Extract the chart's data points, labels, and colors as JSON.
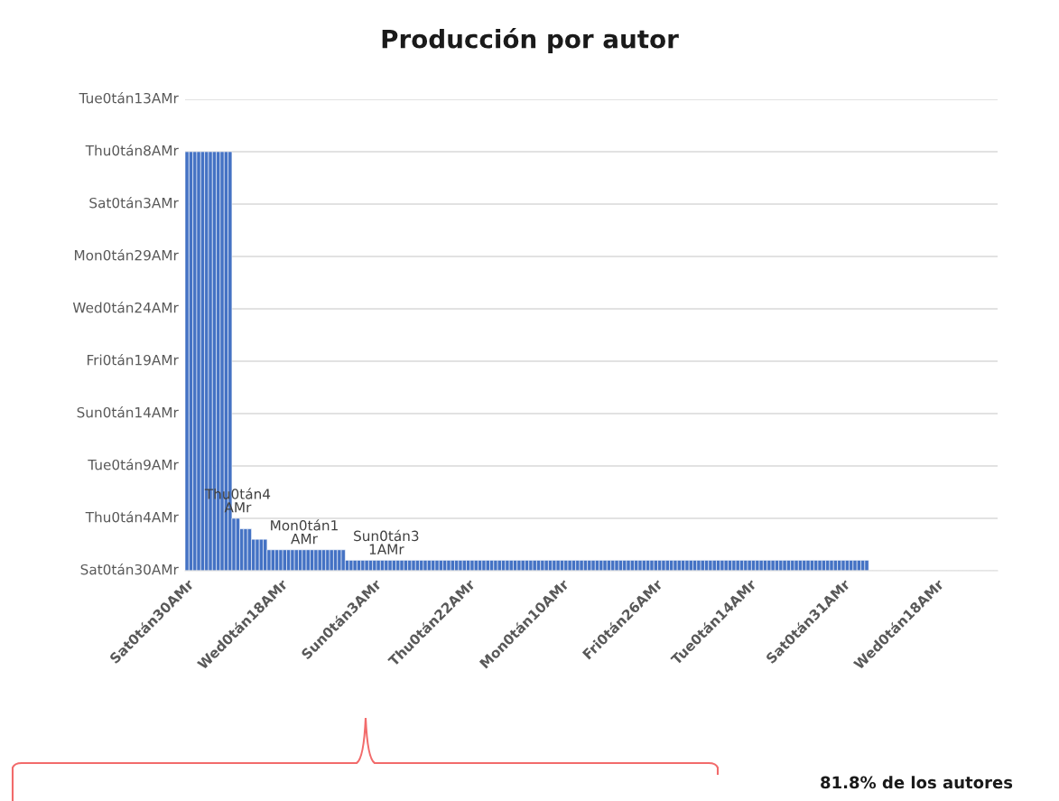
{
  "chart_data": {
    "type": "bar",
    "title": "Producción por autor",
    "ylim": [
      0,
      45
    ],
    "categories": [
      "Sat0tán30AMr",
      null,
      null,
      null,
      null,
      null,
      null,
      null,
      null,
      null,
      null,
      null,
      null,
      null,
      null,
      null,
      null,
      null,
      null,
      null,
      null,
      null,
      null,
      null,
      "Wed0tán18AMr",
      null,
      null,
      null,
      null,
      null,
      null,
      null,
      null,
      null,
      null,
      null,
      null,
      null,
      null,
      null,
      null,
      null,
      null,
      null,
      null,
      null,
      null,
      null,
      "Sun0tán3AMr",
      null,
      null,
      null,
      null,
      null,
      null,
      null,
      null,
      null,
      null,
      null,
      null,
      null,
      null,
      null,
      null,
      null,
      null,
      null,
      null,
      null,
      null,
      null,
      "Thu0tán22AMr",
      null,
      null,
      null,
      null,
      null,
      null,
      null,
      null,
      null,
      null,
      null,
      null,
      null,
      null,
      null,
      null,
      null,
      null,
      null,
      null,
      null,
      null,
      null,
      "Mon0tán10AMr",
      null,
      null,
      null,
      null,
      null,
      null,
      null,
      null,
      null,
      null,
      null,
      null,
      null,
      null,
      null,
      null,
      null,
      null,
      null,
      null,
      null,
      null,
      null,
      "Fri0tán26AMr",
      null,
      null,
      null,
      null,
      null,
      null,
      null,
      null,
      null,
      null,
      null,
      null,
      null,
      null,
      null,
      null,
      null,
      null,
      null,
      null,
      null,
      null,
      null,
      "Tue0tán14AMr",
      null,
      null,
      null,
      null,
      null,
      null,
      null,
      null,
      null,
      null,
      null,
      null,
      null,
      null,
      null,
      null,
      null,
      null,
      null,
      null,
      null,
      null,
      null,
      "Sat0tán31AMr",
      null,
      null,
      null,
      null,
      null,
      null,
      null,
      null,
      null,
      null,
      null,
      null,
      null,
      null,
      null,
      null,
      null,
      null,
      null,
      null,
      null,
      null,
      null,
      "Wed0tán18AMr",
      null,
      null,
      null,
      null,
      null,
      null,
      null,
      null,
      null,
      null,
      null,
      null,
      null,
      null,
      null
    ],
    "values": [
      40,
      40,
      40,
      40,
      40,
      40,
      40,
      40,
      40,
      40,
      40,
      40,
      5,
      5,
      4,
      4,
      4,
      3,
      3,
      3,
      3,
      2,
      2,
      2,
      2,
      2,
      2,
      2,
      2,
      2,
      2,
      2,
      2,
      2,
      2,
      2,
      2,
      2,
      2,
      2,
      2,
      1,
      1,
      1,
      1,
      1,
      1,
      1,
      1,
      1,
      1,
      1,
      1,
      1,
      1,
      1,
      1,
      1,
      1,
      1,
      1,
      1,
      1,
      1,
      1,
      1,
      1,
      1,
      1,
      1,
      1,
      1,
      1,
      1,
      1,
      1,
      1,
      1,
      1,
      1,
      1,
      1,
      1,
      1,
      1,
      1,
      1,
      1,
      1,
      1,
      1,
      1,
      1,
      1,
      1,
      1,
      1,
      1,
      1,
      1,
      1,
      1,
      1,
      1,
      1,
      1,
      1,
      1,
      1,
      1,
      1,
      1,
      1,
      1,
      1,
      1,
      1,
      1,
      1,
      1,
      1,
      1,
      1,
      1,
      1,
      1,
      1,
      1,
      1,
      1,
      1,
      1,
      1,
      1,
      1,
      1,
      1,
      1,
      1,
      1,
      1,
      1,
      1,
      1,
      1,
      1,
      1,
      1,
      1,
      1,
      1,
      1,
      1,
      1,
      1,
      1,
      1,
      1,
      1,
      1,
      1,
      1,
      1,
      1,
      1,
      1,
      1,
      1,
      1,
      1,
      1,
      1,
      1,
      1,
      1,
      null,
      null,
      null,
      null,
      null,
      null,
      null,
      null,
      null,
      null,
      null,
      null,
      null,
      null,
      null,
      null,
      null,
      null,
      null,
      null,
      null,
      null,
      null,
      null,
      null,
      null,
      null,
      null,
      null,
      null,
      null,
      null,
      null
    ],
    "value_labels": [
      null,
      null,
      null,
      null,
      null,
      null,
      null,
      null,
      null,
      null,
      null,
      null,
      null,
      "Thu0tán4\nAMr",
      null,
      null,
      null,
      null,
      null,
      null,
      null,
      null,
      null,
      null,
      null,
      null,
      null,
      null,
      null,
      null,
      "Mon0tán1\nAMr",
      null,
      null,
      null,
      null,
      null,
      null,
      null,
      null,
      null,
      null,
      null,
      null,
      null,
      null,
      null,
      null,
      null,
      null,
      null,
      null,
      "Sun0tán3\n1AMr",
      null,
      null,
      null,
      null,
      null,
      null,
      null,
      null,
      null,
      null,
      null,
      null,
      null,
      null,
      null,
      null,
      null,
      null,
      null,
      null,
      null,
      null,
      null,
      null,
      null,
      null,
      null,
      null,
      null,
      null,
      null,
      null,
      null,
      null,
      null,
      null,
      null,
      null,
      null,
      null,
      null,
      null,
      null,
      null,
      null,
      null,
      null,
      null,
      null,
      null,
      null,
      null,
      null,
      null,
      null,
      null,
      null,
      null,
      null,
      null,
      null,
      null,
      null,
      null,
      null,
      null,
      null,
      null,
      null,
      null,
      null,
      null,
      null,
      null,
      null,
      null,
      null,
      null,
      null,
      null,
      null,
      null,
      null,
      null,
      null,
      null,
      null,
      null,
      null,
      null,
      null,
      null,
      null,
      null,
      null,
      null,
      null,
      null,
      null,
      null,
      null,
      null,
      null,
      null,
      null,
      null,
      null,
      null,
      null,
      null,
      null,
      null,
      null,
      null,
      null,
      null,
      null,
      null,
      null,
      null,
      null,
      null,
      null,
      null,
      null,
      null,
      null,
      null,
      null,
      null,
      null,
      null,
      null,
      null,
      null,
      null,
      null,
      null,
      null,
      null,
      null,
      null,
      null,
      null,
      null,
      null,
      null,
      null,
      null,
      null,
      null,
      null,
      null,
      null,
      null,
      null
    ],
    "color": "#4472c4",
    "ref_lines": [
      {
        "axis": "y",
        "value": 0,
        "label": "Sat0tán30AMr",
        "color": "#d9d9d9"
      },
      {
        "axis": "y",
        "value": 5,
        "label": "Thu0tán4AMr",
        "color": "#d9d9d9"
      },
      {
        "axis": "y",
        "value": 10,
        "label": "Tue0tán9AMr",
        "color": "#d9d9d9"
      },
      {
        "axis": "y",
        "value": 15,
        "label": "Sun0tán14AMr",
        "color": "#d9d9d9"
      },
      {
        "axis": "y",
        "value": 20,
        "label": "Fri0tán19AMr",
        "color": "#d9d9d9"
      },
      {
        "axis": "y",
        "value": 25,
        "label": "Wed0tán24AMr",
        "color": "#d9d9d9"
      },
      {
        "axis": "y",
        "value": 30,
        "label": "Mon0tán29AMr",
        "color": "#d9d9d9"
      },
      {
        "axis": "y",
        "value": 35,
        "label": "Sat0tán3AMr",
        "color": "#d9d9d9"
      },
      {
        "axis": "y",
        "value": 40,
        "label": "Thu0tán8AMr",
        "color": "#d9d9d9"
      },
      {
        "axis": "y",
        "value": 45,
        "label": "Tue0tán13AMr",
        "color": "#d9d9d9"
      }
    ],
    "annotations": [
      "81.8% de los autores"
    ]
  }
}
